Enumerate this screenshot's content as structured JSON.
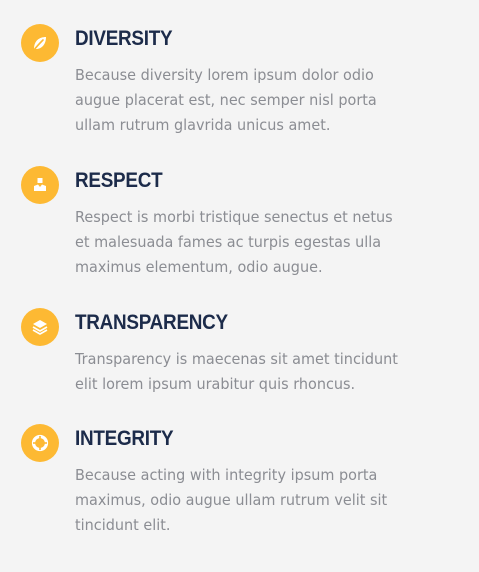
{
  "accent_color": "#fdb933",
  "title_color": "#1c2b4a",
  "text_color": "#8b8d93",
  "background_color": "#f4f4f4",
  "items": [
    {
      "icon": "leaf-icon",
      "title": "DIVERSITY",
      "text": "Because diversity lorem ipsum dolor odio augue placerat est, nec semper nisl porta ullam rutrum glavrida unicus amet."
    },
    {
      "icon": "person-icon",
      "title": "RESPECT",
      "text": "Respect is morbi tristique senectus et netus et malesuada fames ac turpis egestas ulla maximus elementum, odio augue."
    },
    {
      "icon": "layers-icon",
      "title": "TRANSPARENCY",
      "text": "Transparency is maecenas sit amet tincidunt elit lorem ipsum urabitur quis rhoncus."
    },
    {
      "icon": "lifebuoy-icon",
      "title": "INTEGRITY",
      "text": "Because acting with integrity ipsum porta maximus, odio augue ullam rutrum velit sit tincidunt elit."
    }
  ]
}
